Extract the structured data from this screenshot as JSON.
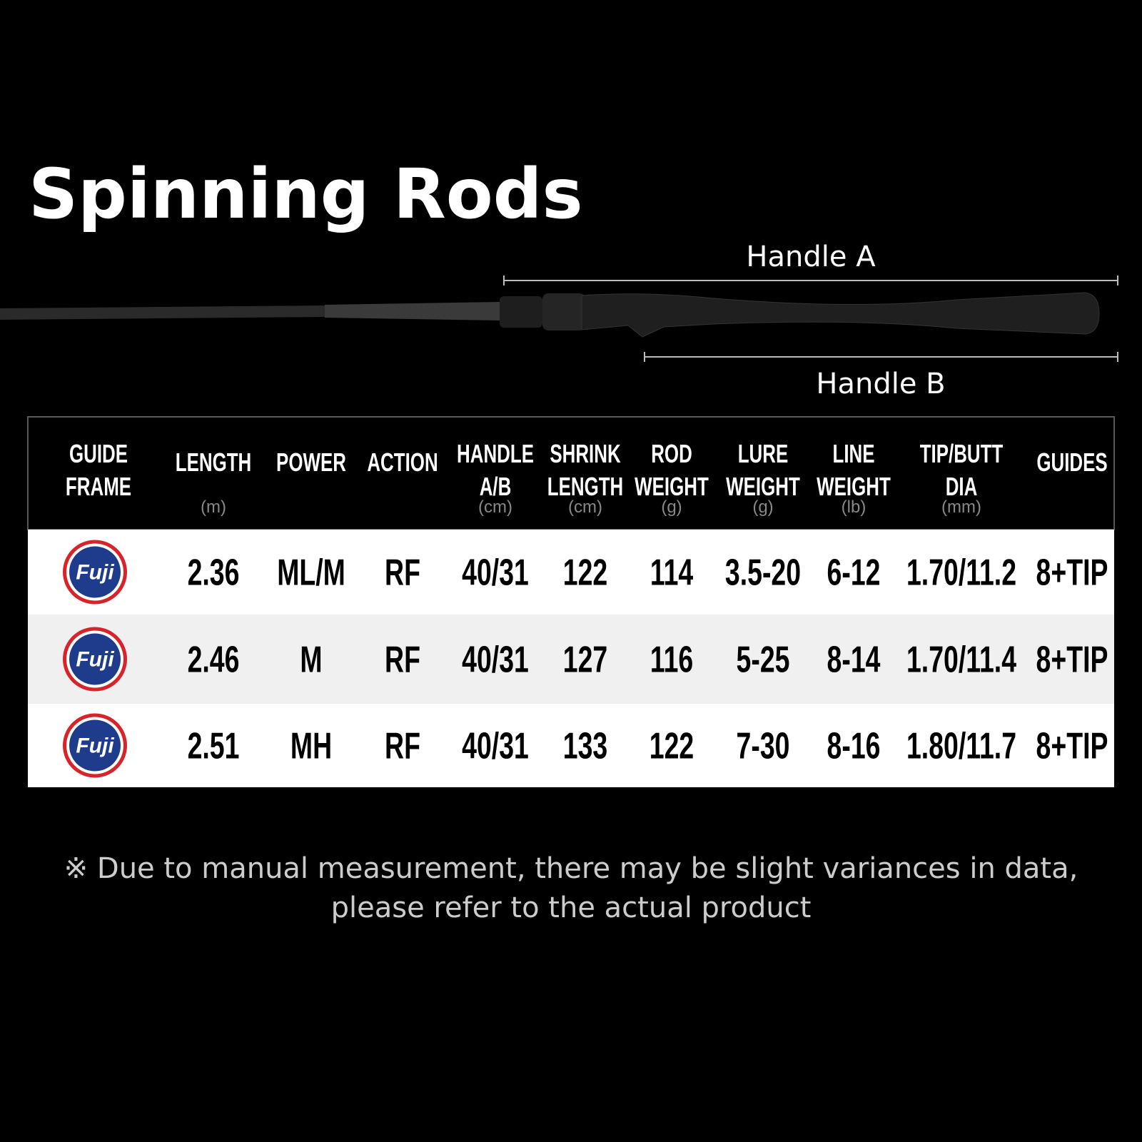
{
  "title": "Spinning Rods",
  "handle_labels": {
    "a": "Handle A",
    "b": "Handle B"
  },
  "table": {
    "headers": [
      {
        "lines": [
          "GUIDE",
          "FRAME"
        ],
        "unit": null
      },
      {
        "lines": [
          "LENGTH"
        ],
        "unit": "(m)"
      },
      {
        "lines": [
          "POWER"
        ],
        "unit": null
      },
      {
        "lines": [
          "ACTION"
        ],
        "unit": null
      },
      {
        "lines": [
          "HANDLE",
          "A/B"
        ],
        "unit": "(cm)"
      },
      {
        "lines": [
          "SHRINK",
          "LENGTH"
        ],
        "unit": "(cm)"
      },
      {
        "lines": [
          "ROD",
          "WEIGHT"
        ],
        "unit": "(g)"
      },
      {
        "lines": [
          "LURE",
          "WEIGHT"
        ],
        "unit": "(g)"
      },
      {
        "lines": [
          "LINE",
          "WEIGHT"
        ],
        "unit": "(lb)"
      },
      {
        "lines": [
          "TIP/BUTT",
          "DIA"
        ],
        "unit": "(mm)"
      },
      {
        "lines": [
          "GUIDES"
        ],
        "unit": null
      }
    ],
    "rows": [
      [
        "Fuji",
        "2.36",
        "ML/M",
        "RF",
        "40/31",
        "122",
        "114",
        "3.5-20",
        "6-12",
        "1.70/11.2",
        "8+TIP"
      ],
      [
        "Fuji",
        "2.46",
        "M",
        "RF",
        "40/31",
        "127",
        "116",
        "5-25",
        "8-14",
        "1.70/11.4",
        "8+TIP"
      ],
      [
        "Fuji",
        "2.51",
        "MH",
        "RF",
        "40/31",
        "133",
        "122",
        "7-30",
        "8-16",
        "1.80/11.7",
        "8+TIP"
      ]
    ]
  },
  "footnote": [
    "※ Due to manual measurement, there may be slight variances in data,",
    "please refer to the actual product"
  ]
}
